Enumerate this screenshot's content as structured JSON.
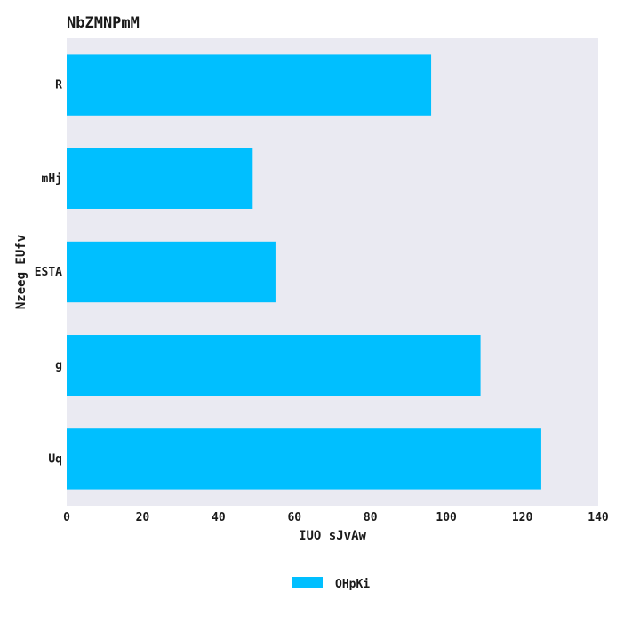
{
  "chart_data": {
    "type": "bar",
    "orientation": "horizontal",
    "title": "NbZMNPmM",
    "xlabel": "IUO sJvAw",
    "ylabel": "Nzeeg EUfv",
    "categories": [
      "R",
      "mHj",
      "ESTA",
      "g",
      "Uq"
    ],
    "series": [
      {
        "name": "QHpKi",
        "values": [
          96,
          49,
          55,
          109,
          125
        ]
      }
    ],
    "xlim": [
      0,
      140
    ],
    "xticks": [
      0,
      20,
      40,
      60,
      80,
      100,
      120,
      140
    ],
    "grid": false,
    "legend_position": "bottom-center",
    "colors": {
      "bar": "#00bfff",
      "plot_background": "#eaeaf2"
    }
  }
}
